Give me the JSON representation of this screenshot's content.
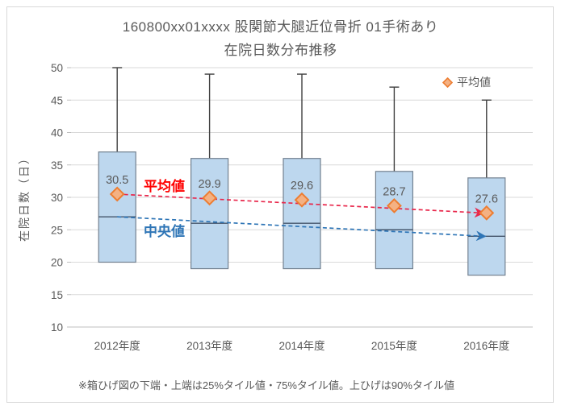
{
  "window": {
    "background": "#ffffff",
    "border_color": "#d9d9d9"
  },
  "chart_data": {
    "type": "boxplot",
    "title_lines": [
      "160800xx01xxxx 股関節大腿近位骨折 01手術あり",
      "在院日数分布推移"
    ],
    "ylabel": "在院日数（日）",
    "ylim": [
      10,
      50
    ],
    "ytick_step": 5,
    "yticks": [
      50,
      45,
      40,
      35,
      30,
      25,
      20,
      15,
      10
    ],
    "categories": [
      "2012年度",
      "2013年度",
      "2014年度",
      "2015年度",
      "2016年度"
    ],
    "series": [
      {
        "name": "平均値",
        "role": "mean",
        "values": [
          30.5,
          29.9,
          29.6,
          28.7,
          27.6
        ]
      },
      {
        "name": "中央値",
        "role": "median",
        "values": [
          27,
          26,
          26,
          25,
          24
        ]
      },
      {
        "name": "25%タイル値",
        "role": "p25",
        "values": [
          20,
          19,
          19,
          19,
          18
        ]
      },
      {
        "name": "75%タイル値",
        "role": "p75",
        "values": [
          37,
          36,
          36,
          34,
          33
        ]
      },
      {
        "name": "90%タイル値",
        "role": "p90",
        "values": [
          50,
          49,
          49,
          47,
          45
        ]
      }
    ],
    "data_labels": [
      "30.5",
      "29.9",
      "29.6",
      "28.7",
      "27.6"
    ],
    "legend": {
      "position": "top-right",
      "items": [
        {
          "label": "平均値",
          "marker": "diamond"
        }
      ]
    },
    "annotations": {
      "mean_label": "平均値",
      "median_label": "中央値"
    },
    "footnote": "※箱ひげ図の下端・上端は25%タイル値・75%タイル値。上ひげは90%タイル値",
    "grid": true,
    "colors": {
      "text": "#595959",
      "gridline": "#d9d9d9",
      "axis_line": "#bfbfbf",
      "box_fill": "#bdd7ee",
      "box_border": "#72808f",
      "median_line": "#44546a",
      "whisker": "#404040",
      "mean_marker_stroke": "#ed7d31",
      "mean_marker_fill": "#f4b183",
      "mean_trend_line": "#e8274b",
      "mean_annotation_text": "#ff0000",
      "median_trend_line": "#2e75b6",
      "median_annotation_text": "#2e75b6"
    }
  }
}
